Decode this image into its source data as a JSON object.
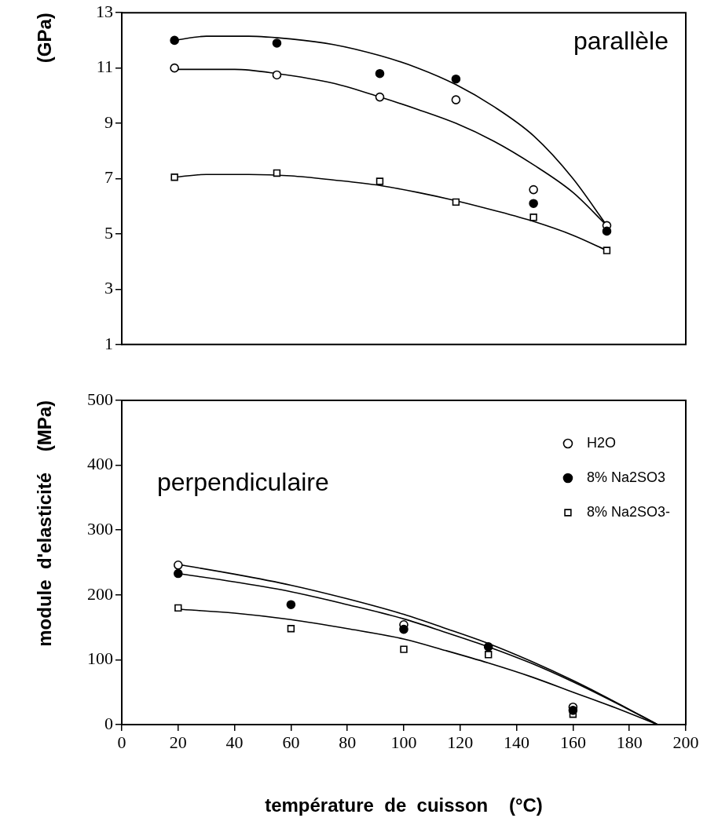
{
  "chart_data": [
    {
      "type": "scatter",
      "ylabel": "(GPa)",
      "xlim": [
        0,
        200
      ],
      "ylim": [
        1,
        13
      ],
      "yticks": [
        1,
        3,
        5,
        7,
        9,
        11,
        13
      ],
      "tick_labels": "y",
      "grid": false,
      "legend": false,
      "marker": "circle",
      "annotations": [
        "parallèle"
      ],
      "series": [
        {
          "color": "#ffffff",
          "x": [
            18.7,
            55,
            91.5,
            118.5,
            146,
            172
          ],
          "values": [
            11.0,
            10.75,
            9.95,
            9.85,
            6.6,
            5.3
          ]
        },
        {
          "color": "#000000",
          "x": [
            18.7,
            55,
            91.5,
            118.5,
            146,
            172
          ],
          "values": [
            12.0,
            11.9,
            10.8,
            10.6,
            6.1,
            5.1
          ]
        },
        {
          "color": "#ffffff",
          "marker": "square",
          "x": [
            18.7,
            55,
            91.5,
            118.5,
            146,
            172
          ],
          "values": [
            7.05,
            7.2,
            6.9,
            6.15,
            5.6,
            4.4
          ]
        },
        {
          "type": "line",
          "color": "#000000",
          "marker": "none",
          "x": [
            18.7,
            40,
            55,
            75,
            91.5,
            105,
            118.5,
            132,
            146,
            160,
            172
          ],
          "values": [
            10.95,
            10.95,
            10.8,
            10.45,
            9.95,
            9.5,
            9.0,
            8.35,
            7.5,
            6.5,
            5.3
          ]
        },
        {
          "type": "line",
          "color": "#000000",
          "marker": "none",
          "x": [
            18.7,
            30,
            45,
            60,
            75,
            91.5,
            105,
            118.5,
            132,
            146,
            160,
            172
          ],
          "values": [
            12.0,
            12.15,
            12.15,
            12.05,
            11.85,
            11.45,
            11.0,
            10.4,
            9.6,
            8.55,
            7.0,
            5.3
          ]
        },
        {
          "type": "line",
          "color": "#000000",
          "marker": "none",
          "x": [
            18.7,
            30,
            45,
            60,
            75,
            91.5,
            105,
            118.5,
            132,
            146,
            160,
            172
          ],
          "values": [
            7.05,
            7.15,
            7.15,
            7.1,
            6.95,
            6.75,
            6.5,
            6.2,
            5.85,
            5.45,
            4.95,
            4.4
          ]
        }
      ]
    },
    {
      "type": "scatter",
      "xlabel": "température  de  cuisson    (°C)",
      "ylabel": "module  d'elasticité    (MPa)",
      "xlim": [
        0,
        200
      ],
      "xticks": [
        0,
        20,
        40,
        60,
        80,
        100,
        120,
        140,
        160,
        180,
        200
      ],
      "ylim": [
        0,
        500
      ],
      "yticks": [
        0,
        100,
        200,
        300,
        400,
        500
      ],
      "grid": false,
      "legend": "top right",
      "marker": "circle",
      "annotations": [
        "perpendiculaire"
      ],
      "series": [
        {
          "name": "H2O",
          "color": "#ffffff",
          "x": [
            20,
            60,
            100,
            130,
            160
          ],
          "values": [
            246,
            null,
            154,
            null,
            27
          ]
        },
        {
          "name": "8% Na2SO3",
          "color": "#000000",
          "x": [
            20,
            60,
            100,
            130,
            160
          ],
          "values": [
            233,
            185,
            147,
            120,
            22
          ]
        },
        {
          "name": "8% Na2SO3-",
          "color": "#ffffff",
          "marker": "square",
          "x": [
            20,
            60,
            100,
            130,
            160
          ],
          "values": [
            180,
            148,
            116,
            108,
            16
          ]
        },
        {
          "type": "line",
          "color": "#000000",
          "marker": "none",
          "x": [
            20,
            40,
            60,
            80,
            100,
            115,
            130,
            145,
            160,
            175,
            190
          ],
          "values": [
            247,
            232,
            215,
            194,
            170,
            148,
            125,
            98,
            68,
            35,
            0
          ]
        },
        {
          "type": "line",
          "color": "#000000",
          "marker": "none",
          "x": [
            20,
            40,
            60,
            80,
            100,
            115,
            130,
            145,
            160,
            175,
            190
          ],
          "values": [
            233,
            220,
            205,
            185,
            163,
            142,
            120,
            95,
            66,
            34,
            0
          ]
        },
        {
          "type": "line",
          "color": "#000000",
          "marker": "none",
          "x": [
            20,
            40,
            60,
            80,
            100,
            115,
            130,
            145,
            160,
            175,
            190
          ],
          "values": [
            178,
            172,
            162,
            148,
            132,
            114,
            95,
            74,
            50,
            26,
            0
          ]
        }
      ]
    }
  ]
}
